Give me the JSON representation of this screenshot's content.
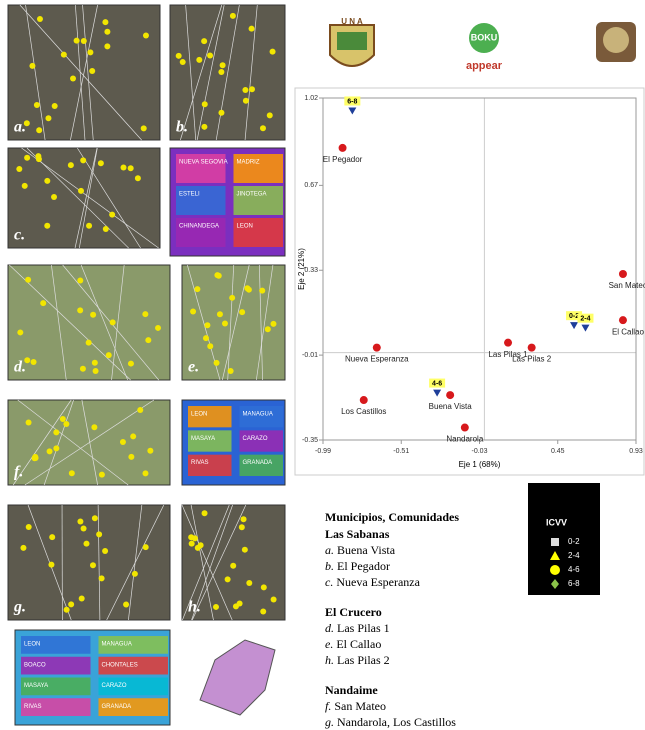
{
  "logos": {
    "una": "U N A",
    "boku": "BOKU",
    "appear": "appear"
  },
  "maps": {
    "panels": [
      "a.",
      "b.",
      "c.",
      "d.",
      "e.",
      "f.",
      "g.",
      "h."
    ],
    "region_maps": [
      [
        "NUEVA SEGOVIA",
        "MADRIZ",
        "ESTELI",
        "JINOTEGA",
        "CHINANDEGA",
        "LEON"
      ],
      [
        "LEON",
        "MANAGUA",
        "MASAYA",
        "CARAZO",
        "RIVAS",
        "GRANADA"
      ],
      [
        "LEON",
        "MANAGUA",
        "BOACO",
        "CHONTALES",
        "MASAYA",
        "CARAZO",
        "RIVAS",
        "GRANADA"
      ]
    ]
  },
  "chart_data": {
    "type": "scatter",
    "x_label": "Eje 1 (68%)",
    "y_label": "Eje 2 (21%)",
    "xlim": [
      -0.99,
      0.93
    ],
    "ylim": [
      -0.35,
      1.02
    ],
    "xticks": [
      -0.99,
      -0.51,
      -0.03,
      0.45,
      0.93
    ],
    "yticks": [
      -0.35,
      -0.01,
      0.33,
      0.67,
      1.02
    ],
    "sites": {
      "color": "#d7191c",
      "labels": [
        "El Pegador",
        "San Mateo",
        "El Callao",
        "Las Pilas 1",
        "Las Pilas 2",
        "Nueva Esperanza",
        "Los Castillos",
        "Buena Vista",
        "Nandarola"
      ],
      "x": [
        -0.87,
        0.85,
        0.85,
        0.145,
        0.29,
        -0.66,
        -0.74,
        -0.21,
        -0.12
      ],
      "y": [
        0.82,
        0.315,
        0.13,
        0.04,
        0.02,
        0.02,
        -0.19,
        -0.17,
        -0.3
      ]
    },
    "icvv": {
      "color": "#1f3f9a",
      "labels": [
        "6-8",
        "0-2",
        "2-4",
        "4-6"
      ],
      "x": [
        -0.81,
        0.55,
        0.62,
        -0.29
      ],
      "y": [
        0.97,
        0.11,
        0.1,
        -0.16
      ]
    }
  },
  "legend": {
    "title": "ICVV",
    "items": [
      {
        "label": "0-2",
        "color": "#dddddd"
      },
      {
        "label": "2-4",
        "color": "#ffff00"
      },
      {
        "label": "4-6",
        "color": "#ffff00"
      },
      {
        "label": "6-8",
        "color": "#8bc34a"
      }
    ]
  },
  "text_list": {
    "heading": "Municipios, Comunidades",
    "groups": [
      {
        "title": "Las Sabanas",
        "items": [
          {
            "letter": "a.",
            "name": "Buena Vista"
          },
          {
            "letter": "b.",
            "name": "El Pegador"
          },
          {
            "letter": "c.",
            "name": "Nueva Esperanza"
          }
        ]
      },
      {
        "title": "El Crucero",
        "items": [
          {
            "letter": "d.",
            "name": "Las Pilas 1"
          },
          {
            "letter": "e.",
            "name": "El Callao"
          },
          {
            "letter": "h.",
            "name": "Las Pilas 2"
          }
        ]
      },
      {
        "title": "Nandaime",
        "items": [
          {
            "letter": "f.",
            "name": "San Mateo"
          },
          {
            "letter": "g.",
            "name": "Nandarola, Los Castillos"
          }
        ]
      }
    ]
  }
}
